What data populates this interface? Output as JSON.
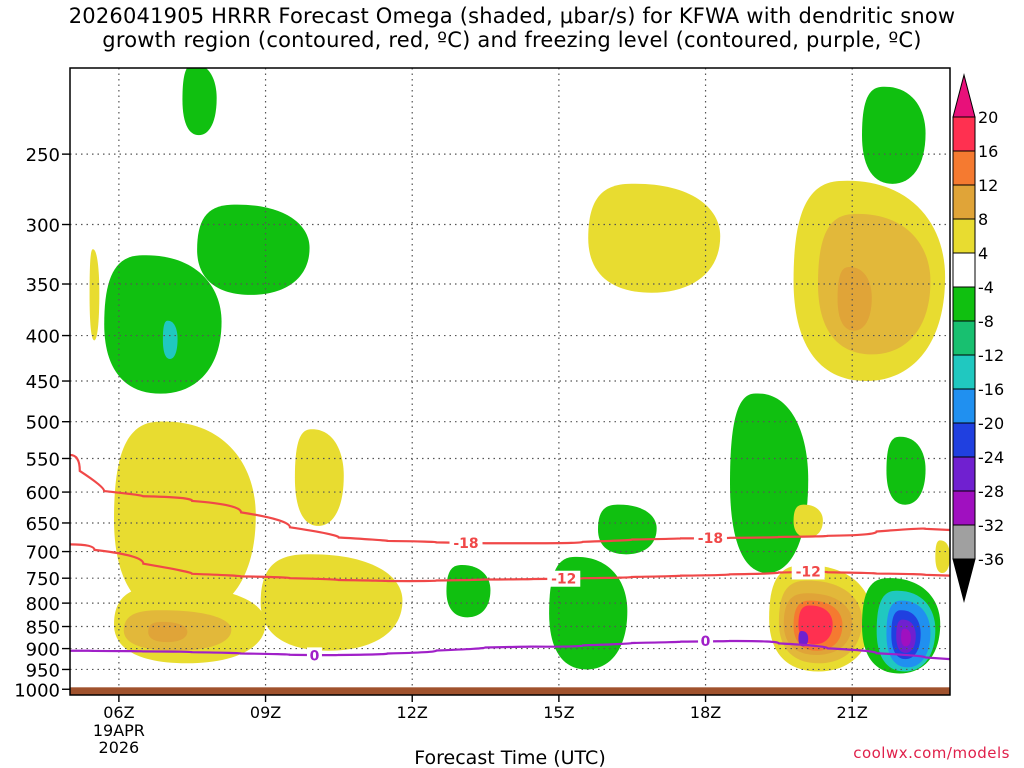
{
  "title_line1": "2026041905 HRRR Forecast Omega (shaded, μbar/s) for KFWA with dendritic snow",
  "title_line2": "growth region (contoured, red, ºC) and freezing level (contoured, purple, ºC)",
  "credit": "coolwx.com/models",
  "chart_data": {
    "type": "time-height cross section",
    "xlabel": "Forecast Time (UTC)",
    "x_range_hours": [
      5,
      23
    ],
    "x_ticks": [
      {
        "hour": 6,
        "label": "06Z",
        "sub": [
          "19APR",
          "2026"
        ]
      },
      {
        "hour": 9,
        "label": "09Z"
      },
      {
        "hour": 12,
        "label": "12Z"
      },
      {
        "hour": 15,
        "label": "15Z"
      },
      {
        "hour": 18,
        "label": "18Z"
      },
      {
        "hour": 21,
        "label": "21Z"
      }
    ],
    "y_axis": "pressure (hPa)",
    "y_ticks": [
      250,
      300,
      350,
      400,
      450,
      500,
      550,
      600,
      650,
      700,
      750,
      800,
      850,
      900,
      950,
      1000
    ],
    "y_range_hpa": [
      200,
      1015
    ],
    "surface_hpa": 995,
    "colorbar": {
      "labels": [
        "20",
        "16",
        "12",
        "8",
        "4",
        "-4",
        "-8",
        "-12",
        "-16",
        "-20",
        "-24",
        "-28",
        "-32",
        "-36"
      ],
      "colors": [
        "#ff3050",
        "#f57a30",
        "#e0a438",
        "#e8dc30",
        "#ffffff",
        "#10c010",
        "#18c070",
        "#20c8c0",
        "#2090f0",
        "#2040e0",
        "#7020d0",
        "#a010c0",
        "#a0a0a0"
      ],
      "top_arrow": "#e8107a",
      "bottom_arrow": "#000000"
    },
    "omega_regions": [
      {
        "level": -8,
        "t0": 7.3,
        "t1": 8.0,
        "p0": 238,
        "p1": 198
      },
      {
        "level": -8,
        "t0": 5.7,
        "t1": 8.1,
        "p0": 465,
        "p1": 325
      },
      {
        "level": -8,
        "t0": 7.6,
        "t1": 9.9,
        "p0": 360,
        "p1": 285
      },
      {
        "level": -12,
        "t0": 6.9,
        "t1": 7.2,
        "p0": 425,
        "p1": 385
      },
      {
        "level": 4,
        "t0": 5.4,
        "t1": 5.6,
        "p0": 405,
        "p1": 320
      },
      {
        "level": -8,
        "t0": 21.2,
        "t1": 22.5,
        "p0": 270,
        "p1": 210
      },
      {
        "level": 4,
        "t0": 15.6,
        "t1": 18.3,
        "p0": 358,
        "p1": 270
      },
      {
        "level": 4,
        "t0": 19.8,
        "t1": 22.9,
        "p0": 450,
        "p1": 268
      },
      {
        "level": 8,
        "t0": 20.3,
        "t1": 22.6,
        "p0": 420,
        "p1": 292
      },
      {
        "level": 12,
        "t0": 20.7,
        "t1": 21.4,
        "p0": 395,
        "p1": 335
      },
      {
        "level": -8,
        "t0": 18.5,
        "t1": 20.1,
        "p0": 740,
        "p1": 465
      },
      {
        "level": -8,
        "t0": 21.7,
        "t1": 22.5,
        "p0": 620,
        "p1": 520
      },
      {
        "level": 4,
        "t0": 5.9,
        "t1": 8.8,
        "p0": 830,
        "p1": 500
      },
      {
        "level": 4,
        "t0": 9.6,
        "t1": 10.6,
        "p0": 655,
        "p1": 510
      },
      {
        "level": 4,
        "t0": 8.9,
        "t1": 11.8,
        "p0": 905,
        "p1": 705
      },
      {
        "level": 4,
        "t0": 5.9,
        "t1": 9.0,
        "p0": 935,
        "p1": 765
      },
      {
        "level": 8,
        "t0": 6.1,
        "t1": 8.3,
        "p0": 905,
        "p1": 815
      },
      {
        "level": 12,
        "t0": 6.6,
        "t1": 7.4,
        "p0": 885,
        "p1": 840
      },
      {
        "level": -8,
        "t0": 12.7,
        "t1": 13.6,
        "p0": 830,
        "p1": 725
      },
      {
        "level": -8,
        "t0": 14.8,
        "t1": 16.4,
        "p0": 950,
        "p1": 710
      },
      {
        "level": -8,
        "t0": 15.8,
        "t1": 17.0,
        "p0": 705,
        "p1": 620
      },
      {
        "level": 4,
        "t0": 19.8,
        "t1": 20.4,
        "p0": 675,
        "p1": 620
      },
      {
        "level": 4,
        "t0": 22.7,
        "t1": 23.0,
        "p0": 740,
        "p1": 680
      },
      {
        "level": 4,
        "t0": 19.3,
        "t1": 21.4,
        "p0": 955,
        "p1": 725
      },
      {
        "level": 8,
        "t0": 19.5,
        "t1": 21.2,
        "p0": 935,
        "p1": 755
      },
      {
        "level": 12,
        "t0": 19.6,
        "t1": 21.0,
        "p0": 915,
        "p1": 780
      },
      {
        "level": 16,
        "t0": 19.8,
        "t1": 20.8,
        "p0": 905,
        "p1": 795
      },
      {
        "level": 20,
        "t0": 19.9,
        "t1": 20.6,
        "p0": 890,
        "p1": 805
      },
      {
        "level": -24,
        "t0": 19.9,
        "t1": 20.1,
        "p0": 895,
        "p1": 860
      },
      {
        "level": -8,
        "t0": 21.2,
        "t1": 22.8,
        "p0": 960,
        "p1": 750
      },
      {
        "level": -12,
        "t0": 21.5,
        "t1": 22.7,
        "p0": 955,
        "p1": 775
      },
      {
        "level": -16,
        "t0": 21.7,
        "t1": 22.6,
        "p0": 945,
        "p1": 795
      },
      {
        "level": -20,
        "t0": 21.8,
        "t1": 22.4,
        "p0": 925,
        "p1": 815
      },
      {
        "level": -24,
        "t0": 21.9,
        "t1": 22.3,
        "p0": 910,
        "p1": 835
      },
      {
        "level": -28,
        "t0": 22.0,
        "t1": 22.2,
        "p0": 895,
        "p1": 855
      }
    ],
    "contours": [
      {
        "value": -18,
        "label": "-18",
        "color": "#f04848",
        "points": [
          [
            5,
            545
          ],
          [
            5.4,
            592
          ],
          [
            6,
            605
          ],
          [
            7,
            608
          ],
          [
            8,
            620
          ],
          [
            9,
            645
          ],
          [
            10,
            670
          ],
          [
            11,
            680
          ],
          [
            12,
            682
          ],
          [
            13,
            685
          ],
          [
            14,
            685
          ],
          [
            15,
            685
          ],
          [
            16,
            680
          ],
          [
            17,
            677
          ],
          [
            18,
            676
          ],
          [
            19,
            675
          ],
          [
            20,
            673
          ],
          [
            21,
            671
          ],
          [
            22,
            658
          ],
          [
            23,
            662
          ]
        ],
        "label_at": [
          [
            13.1,
            685
          ],
          [
            18.1,
            676
          ]
        ]
      },
      {
        "value": -12,
        "label": "-12",
        "color": "#f04848",
        "points": [
          [
            5,
            687
          ],
          [
            6,
            707
          ],
          [
            7,
            738
          ],
          [
            8,
            745
          ],
          [
            9,
            748
          ],
          [
            10,
            752
          ],
          [
            11,
            755
          ],
          [
            12,
            756
          ],
          [
            13,
            753
          ],
          [
            14,
            752
          ],
          [
            15,
            751
          ],
          [
            16,
            749
          ],
          [
            17,
            746
          ],
          [
            18,
            744
          ],
          [
            19,
            741
          ],
          [
            20,
            737
          ],
          [
            21,
            740
          ],
          [
            22,
            742
          ],
          [
            23,
            745
          ]
        ],
        "label_at": [
          [
            15.1,
            751
          ],
          [
            20.1,
            737
          ]
        ]
      },
      {
        "value": 0,
        "label": "0",
        "color": "#a020c8",
        "points": [
          [
            5,
            905
          ],
          [
            6,
            906
          ],
          [
            7,
            907
          ],
          [
            8,
            910
          ],
          [
            9,
            913
          ],
          [
            10,
            916
          ],
          [
            11,
            914
          ],
          [
            12,
            909
          ],
          [
            13,
            900
          ],
          [
            14,
            895
          ],
          [
            15,
            896
          ],
          [
            16,
            889
          ],
          [
            17,
            885
          ],
          [
            18,
            883
          ],
          [
            19,
            882
          ],
          [
            20,
            894
          ],
          [
            21,
            905
          ],
          [
            22,
            917
          ],
          [
            23,
            925
          ]
        ],
        "label_at": [
          [
            10,
            916
          ],
          [
            18,
            883
          ]
        ]
      }
    ]
  }
}
